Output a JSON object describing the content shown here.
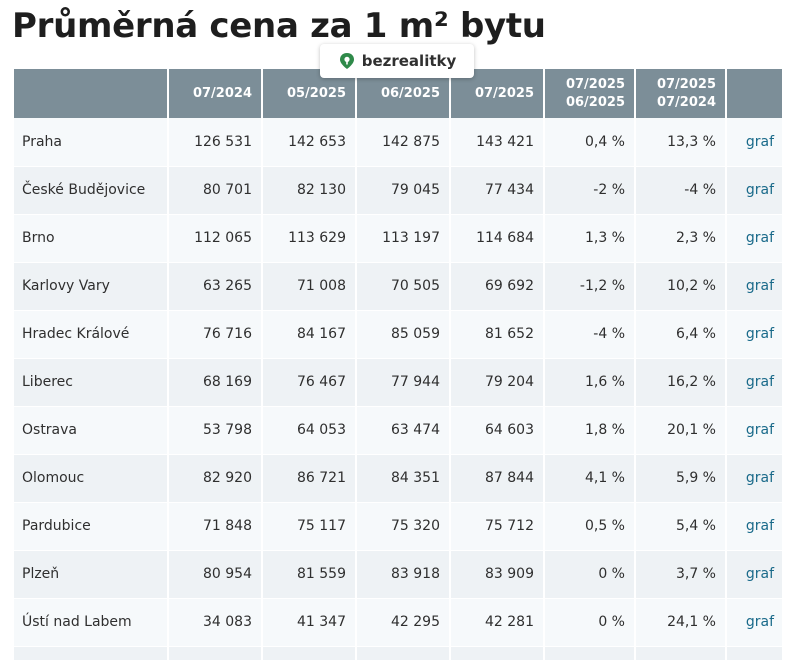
{
  "title": "Průměrná cena za 1 m² bytu",
  "brand": {
    "name": "bezrealitky",
    "color": "#2f8a4a"
  },
  "table": {
    "headers": [
      {
        "line1": "",
        "line2": ""
      },
      {
        "line1": "",
        "line2": "07/2024"
      },
      {
        "line1": "",
        "line2": "05/2025"
      },
      {
        "line1": "",
        "line2": "06/2025"
      },
      {
        "line1": "",
        "line2": "07/2025"
      },
      {
        "line1": "07/2025",
        "line2": "06/2025"
      },
      {
        "line1": "07/2025",
        "line2": "07/2024"
      },
      {
        "line1": "",
        "line2": ""
      }
    ],
    "rows": [
      {
        "city": "Praha",
        "v1": "126 531",
        "v2": "142 653",
        "v3": "142 875",
        "v4": "143 421",
        "mom": "0,4 %",
        "yoy": "13,3 %",
        "link": "graf"
      },
      {
        "city": "České Budějovice",
        "v1": "80 701",
        "v2": "82 130",
        "v3": "79 045",
        "v4": "77 434",
        "mom": "-2 %",
        "yoy": "-4 %",
        "link": "graf"
      },
      {
        "city": "Brno",
        "v1": "112 065",
        "v2": "113 629",
        "v3": "113 197",
        "v4": "114 684",
        "mom": "1,3 %",
        "yoy": "2,3 %",
        "link": "graf"
      },
      {
        "city": "Karlovy Vary",
        "v1": "63 265",
        "v2": "71 008",
        "v3": "70 505",
        "v4": "69 692",
        "mom": "-1,2 %",
        "yoy": "10,2 %",
        "link": "graf"
      },
      {
        "city": "Hradec Králové",
        "v1": "76 716",
        "v2": "84 167",
        "v3": "85 059",
        "v4": "81 652",
        "mom": "-4 %",
        "yoy": "6,4 %",
        "link": "graf"
      },
      {
        "city": "Liberec",
        "v1": "68 169",
        "v2": "76 467",
        "v3": "77 944",
        "v4": "79 204",
        "mom": "1,6 %",
        "yoy": "16,2 %",
        "link": "graf"
      },
      {
        "city": "Ostrava",
        "v1": "53 798",
        "v2": "64 053",
        "v3": "63 474",
        "v4": "64 603",
        "mom": "1,8 %",
        "yoy": "20,1 %",
        "link": "graf"
      },
      {
        "city": "Olomouc",
        "v1": "82 920",
        "v2": "86 721",
        "v3": "84 351",
        "v4": "87 844",
        "mom": "4,1 %",
        "yoy": "5,9 %",
        "link": "graf"
      },
      {
        "city": "Pardubice",
        "v1": "71 848",
        "v2": "75 117",
        "v3": "75 320",
        "v4": "75 712",
        "mom": "0,5 %",
        "yoy": "5,4 %",
        "link": "graf"
      },
      {
        "city": "Plzeň",
        "v1": "80 954",
        "v2": "81 559",
        "v3": "83 918",
        "v4": "83 909",
        "mom": "0 %",
        "yoy": "3,7 %",
        "link": "graf"
      },
      {
        "city": "Ústí nad Labem",
        "v1": "34 083",
        "v2": "41 347",
        "v3": "42 295",
        "v4": "42 281",
        "mom": "0 %",
        "yoy": "24,1 %",
        "link": "graf"
      }
    ]
  }
}
